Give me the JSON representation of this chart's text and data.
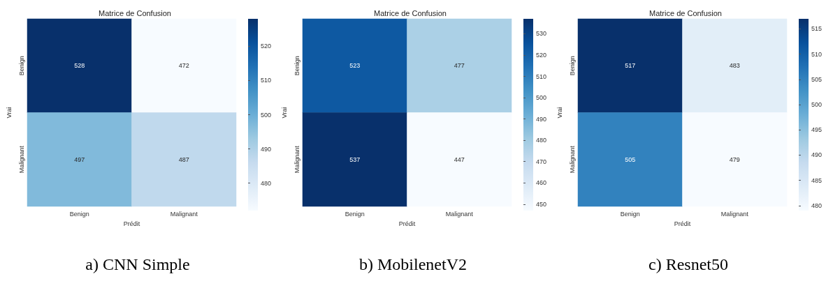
{
  "chart_data": [
    {
      "type": "heatmap",
      "title": "Matrice de Confusion",
      "xlabel": "Prédit",
      "ylabel": "Vrai",
      "categories": [
        "Benign",
        "Malignant"
      ],
      "y_categories": [
        "Benign",
        "Malignant"
      ],
      "cells": [
        [
          528,
          472
        ],
        [
          497,
          487
        ]
      ],
      "clim": [
        472,
        528
      ],
      "cticks": [
        480,
        490,
        500,
        510,
        520
      ],
      "data_labels": true,
      "annotations": [
        "a)   CNN Simple"
      ]
    },
    {
      "type": "heatmap",
      "title": "Matrice de Confusion",
      "xlabel": "Prédit",
      "ylabel": "Vrai",
      "categories": [
        "Benign",
        "Malignant"
      ],
      "y_categories": [
        "Benign",
        "Malignant"
      ],
      "cells": [
        [
          523,
          477
        ],
        [
          537,
          447
        ]
      ],
      "clim": [
        447,
        537
      ],
      "cticks": [
        450,
        460,
        470,
        480,
        490,
        500,
        510,
        520,
        530
      ],
      "data_labels": true,
      "annotations": [
        "b) MobilenetV2"
      ]
    },
    {
      "type": "heatmap",
      "title": "Matrice de Confusion",
      "xlabel": "Prédit",
      "ylabel": "Vrai",
      "categories": [
        "Benign",
        "Malignant"
      ],
      "y_categories": [
        "Benign",
        "Malignant"
      ],
      "cells": [
        [
          517,
          483
        ],
        [
          505,
          479
        ]
      ],
      "clim": [
        479,
        517
      ],
      "cticks": [
        480,
        485,
        490,
        495,
        500,
        505,
        510,
        515
      ],
      "data_labels": true,
      "annotations": [
        "c) Resnet50"
      ]
    }
  ]
}
